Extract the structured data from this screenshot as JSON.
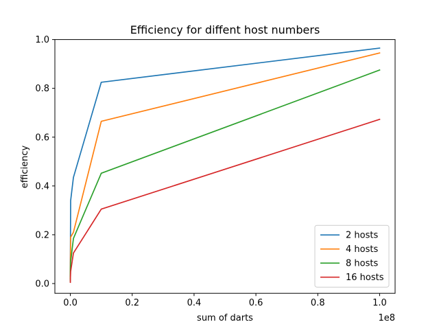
{
  "chart_data": {
    "type": "line",
    "title": "Efficiency for diffent host numbers",
    "xlabel": "sum of darts",
    "ylabel": "efficiency",
    "x_offset_label": "1e8",
    "xlim": [
      -5000000,
      105000000
    ],
    "ylim": [
      -0.04,
      1.0
    ],
    "x_ticks": [
      0,
      20000000,
      40000000,
      60000000,
      80000000,
      100000000
    ],
    "x_tick_labels": [
      "0.0",
      "0.2",
      "0.4",
      "0.6",
      "0.8",
      "1.0"
    ],
    "y_ticks": [
      0.0,
      0.2,
      0.4,
      0.6,
      0.8,
      1.0
    ],
    "y_tick_labels": [
      "0.0",
      "0.2",
      "0.4",
      "0.6",
      "0.8",
      "1.0"
    ],
    "grid": false,
    "legend_position": "lower right",
    "x": [
      1000,
      10000,
      100000,
      1000000,
      10000000,
      100000000
    ],
    "series": [
      {
        "name": "2 hosts",
        "color": "#1f77b4",
        "values": [
          0.03,
          0.1,
          0.34,
          0.435,
          0.825,
          0.965
        ]
      },
      {
        "name": "4 hosts",
        "color": "#ff7f0e",
        "values": [
          0.02,
          0.07,
          0.19,
          0.21,
          0.665,
          0.945
        ]
      },
      {
        "name": "8 hosts",
        "color": "#2ca02c",
        "values": [
          0.01,
          0.05,
          0.09,
          0.185,
          0.452,
          0.875
        ]
      },
      {
        "name": "16 hosts",
        "color": "#d62728",
        "values": [
          0.005,
          0.02,
          0.05,
          0.125,
          0.305,
          0.673
        ]
      }
    ]
  }
}
